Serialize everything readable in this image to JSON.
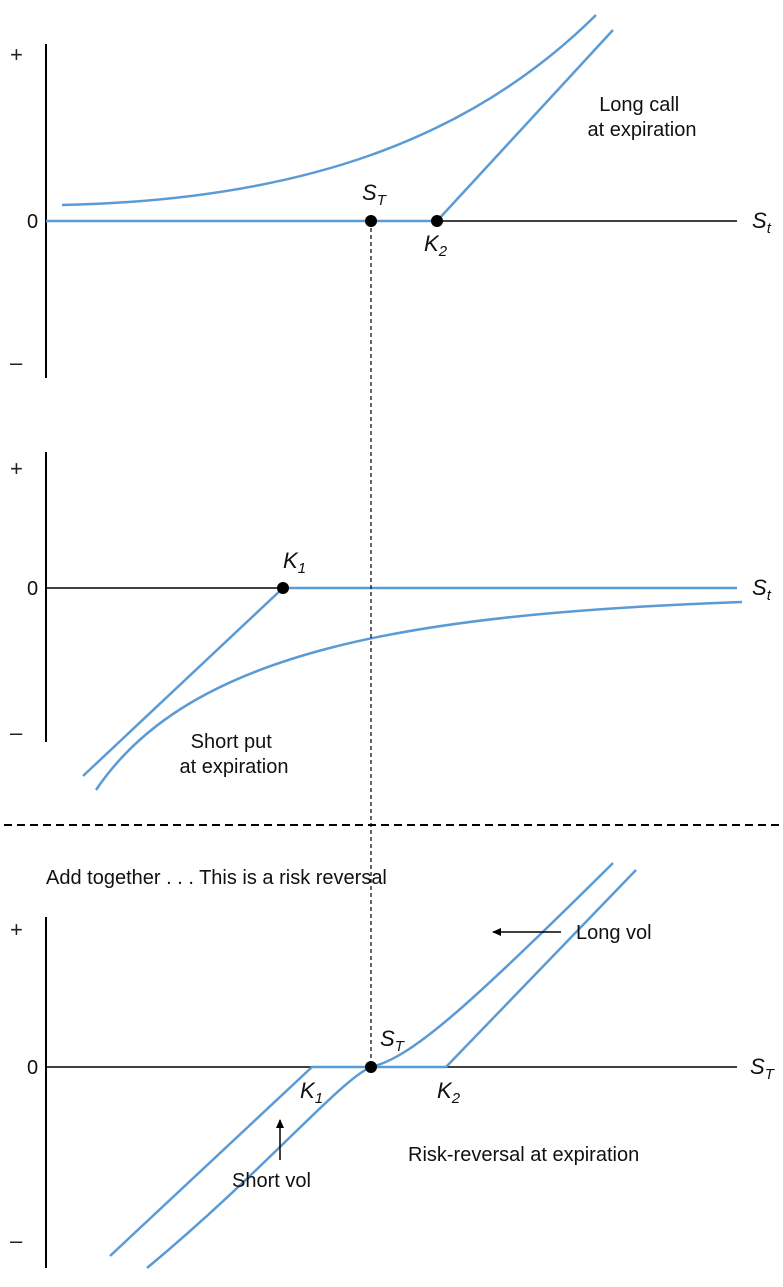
{
  "colors": {
    "payoff_line": "#5b9bd5",
    "axis": "#000000",
    "guide": "#000000",
    "point": "#000000"
  },
  "panel_top": {
    "plus_sign": "+",
    "zero_label": "0",
    "minus_sign": "–",
    "x_axis_label": {
      "main": "S",
      "sub": "t"
    },
    "point_ST_label": {
      "main": "S",
      "sub": "T"
    },
    "point_K2_label": {
      "main": "K",
      "sub": "2"
    },
    "caption_line1": "Long call",
    "caption_line2": "at expiration"
  },
  "panel_middle": {
    "plus_sign": "+",
    "zero_label": "0",
    "minus_sign": "–",
    "x_axis_label": {
      "main": "S",
      "sub": "t"
    },
    "point_K1_label": {
      "main": "K",
      "sub": "1"
    },
    "caption_line1": "Short put",
    "caption_line2": "at expiration"
  },
  "summary_text": "Add together . . . This is a risk reversal",
  "panel_bottom": {
    "plus_sign": "+",
    "zero_label": "0",
    "minus_sign": "–",
    "x_axis_label": {
      "main": "S",
      "sub": "T"
    },
    "point_ST_label": {
      "main": "S",
      "sub": "T"
    },
    "point_K1_label": {
      "main": "K",
      "sub": "1"
    },
    "point_K2_label": {
      "main": "K",
      "sub": "2"
    },
    "long_vol_label": "Long vol",
    "short_vol_label": "Short vol",
    "caption": "Risk-reversal at expiration"
  }
}
